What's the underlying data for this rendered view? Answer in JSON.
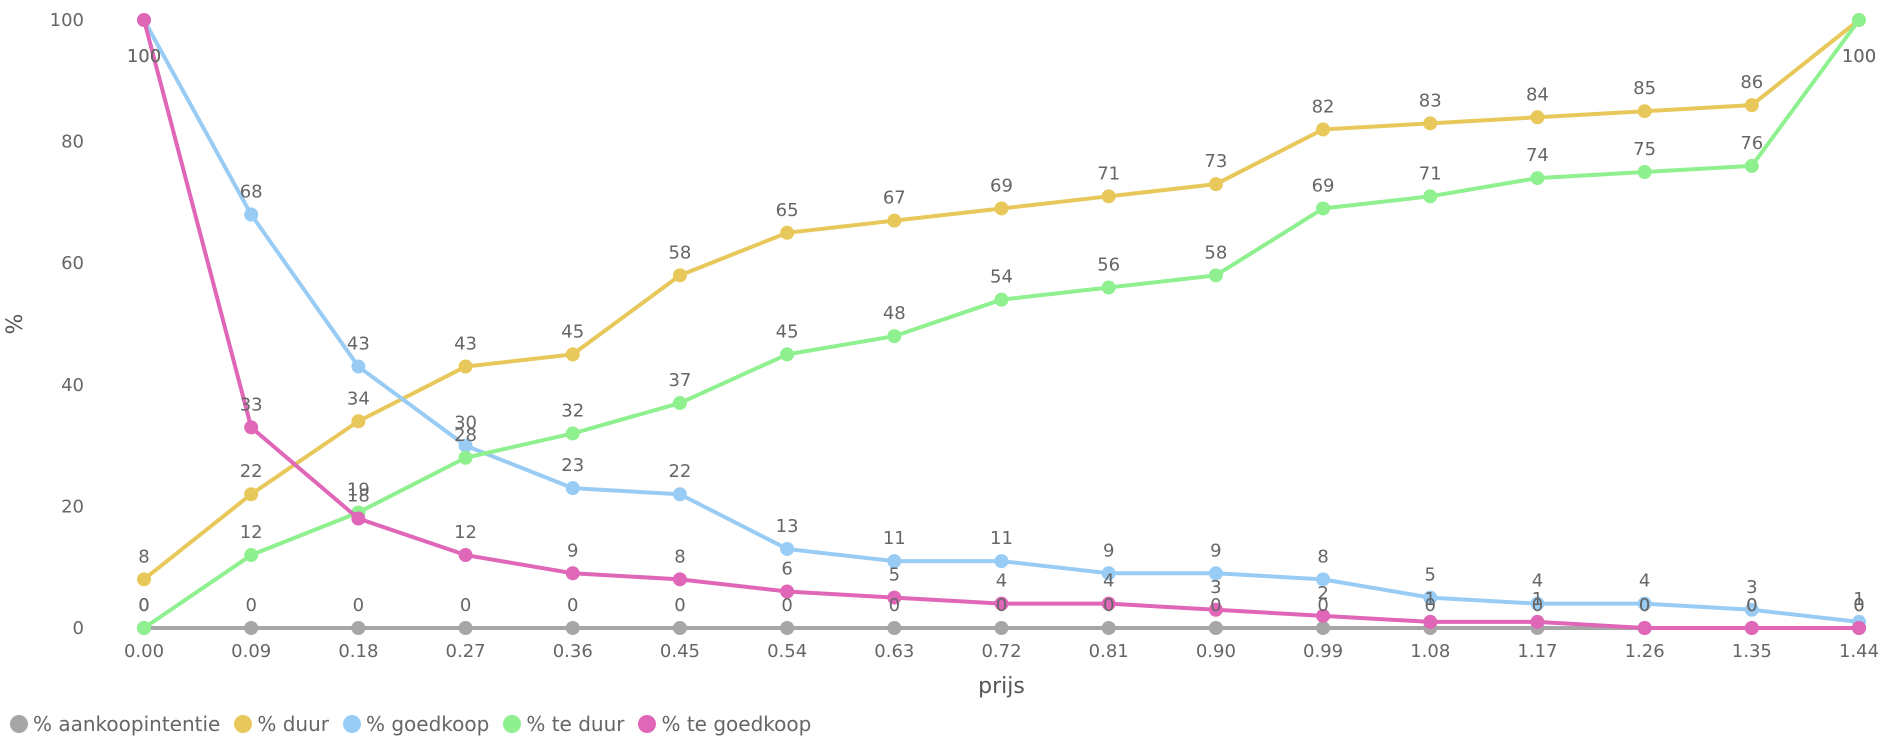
{
  "chart_data": {
    "type": "line",
    "xlabel": "prijs",
    "ylabel": "%",
    "ylim": [
      0,
      100
    ],
    "yticks": [
      "0",
      "20",
      "40",
      "60",
      "80",
      "100"
    ],
    "x": [
      "0.00",
      "0.09",
      "0.18",
      "0.27",
      "0.36",
      "0.45",
      "0.54",
      "0.63",
      "0.72",
      "0.81",
      "0.90",
      "0.99",
      "1.08",
      "1.17",
      "1.26",
      "1.35",
      "1.44"
    ],
    "legend_position": "bottom-left",
    "data_labels": true,
    "series": [
      {
        "name": "% aankoopintentie",
        "color": "#a6a6a6",
        "values": [
          0,
          0,
          0,
          0,
          0,
          0,
          0,
          0,
          0,
          0,
          0,
          0,
          0,
          0,
          0,
          0,
          0
        ]
      },
      {
        "name": "% duur",
        "color": "#e8c85a",
        "values": [
          8,
          22,
          34,
          43,
          45,
          58,
          65,
          67,
          69,
          71,
          73,
          82,
          83,
          84,
          85,
          86,
          100
        ]
      },
      {
        "name": "% goedkoop",
        "color": "#99ccf5",
        "values": [
          100,
          68,
          43,
          30,
          23,
          22,
          13,
          11,
          11,
          9,
          9,
          8,
          5,
          4,
          4,
          3,
          1
        ]
      },
      {
        "name": "% te duur",
        "color": "#8ef08e",
        "values": [
          0,
          12,
          19,
          28,
          32,
          37,
          45,
          48,
          54,
          56,
          58,
          69,
          71,
          74,
          75,
          76,
          100
        ]
      },
      {
        "name": "% te goedkoop",
        "color": "#e066b8",
        "values": [
          100,
          33,
          18,
          12,
          9,
          8,
          6,
          5,
          4,
          4,
          3,
          2,
          1,
          1,
          0,
          0,
          0
        ]
      }
    ]
  }
}
